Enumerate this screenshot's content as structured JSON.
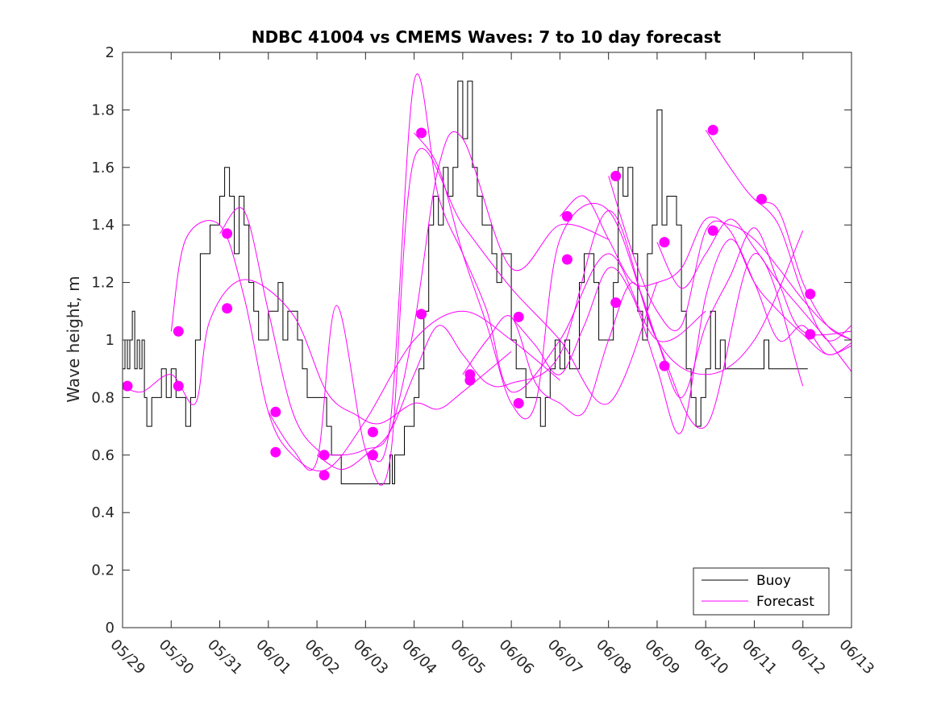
{
  "chart_data": {
    "type": "line",
    "title": "NDBC 41004 vs CMEMS Waves: 7 to 10 day forecast",
    "ylabel": "Wave height, m",
    "xlabel": "",
    "xlim": [
      0,
      15
    ],
    "ylim": [
      0,
      2
    ],
    "y_ticks": [
      0,
      0.2,
      0.4,
      0.6,
      0.8,
      1,
      1.2,
      1.4,
      1.6,
      1.8,
      2
    ],
    "y_tick_labels": [
      "0",
      "0.2",
      "0.4",
      "0.6",
      "0.8",
      "1",
      "1.2",
      "1.4",
      "1.6",
      "1.8",
      "2"
    ],
    "x_tick_labels": [
      "05/29",
      "05/30",
      "05/31",
      "06/01",
      "06/02",
      "06/03",
      "06/04",
      "06/05",
      "06/06",
      "06/07",
      "06/08",
      "06/09",
      "06/10",
      "06/11",
      "06/12",
      "06/13"
    ],
    "grid": false,
    "legend_position": "bottom-right",
    "legend": [
      "Buoy",
      "Forecast"
    ],
    "colors": {
      "buoy": "#000000",
      "forecast": "#ff00ff"
    },
    "buoy": {
      "name": "Buoy",
      "step": true,
      "x": [
        0,
        0.05,
        0.1,
        0.15,
        0.2,
        0.25,
        0.3,
        0.35,
        0.4,
        0.45,
        0.5,
        0.6,
        0.7,
        0.8,
        0.9,
        1.0,
        1.1,
        1.2,
        1.3,
        1.4,
        1.5,
        1.6,
        1.7,
        1.8,
        1.9,
        2.0,
        2.1,
        2.2,
        2.3,
        2.4,
        2.5,
        2.6,
        2.7,
        2.8,
        2.9,
        3.0,
        3.1,
        3.2,
        3.3,
        3.4,
        3.5,
        3.6,
        3.7,
        3.8,
        3.9,
        4.0,
        4.1,
        4.2,
        4.3,
        4.4,
        4.5,
        4.6,
        4.8,
        5.0,
        5.2,
        5.4,
        5.5,
        5.55,
        5.6,
        5.8,
        6.0,
        6.1,
        6.2,
        6.3,
        6.4,
        6.5,
        6.6,
        6.7,
        6.8,
        6.9,
        7.0,
        7.1,
        7.2,
        7.3,
        7.4,
        7.5,
        7.6,
        7.7,
        7.8,
        7.9,
        8.0,
        8.1,
        8.2,
        8.3,
        8.4,
        8.5,
        8.6,
        8.7,
        8.8,
        8.9,
        9.0,
        9.1,
        9.2,
        9.3,
        9.4,
        9.5,
        9.6,
        9.7,
        9.8,
        9.9,
        10.0,
        10.1,
        10.2,
        10.3,
        10.4,
        10.5,
        10.6,
        10.7,
        10.8,
        10.9,
        11.0,
        11.1,
        11.2,
        11.3,
        11.4,
        11.5,
        11.6,
        11.7,
        11.8,
        11.9,
        12.0,
        12.1,
        12.2,
        12.3,
        12.4,
        12.5,
        12.6,
        12.7,
        12.8,
        12.9,
        13.0,
        13.1,
        13.2,
        13.3,
        13.4,
        13.5,
        13.6,
        13.7,
        13.8,
        13.9,
        14.0,
        14.1
      ],
      "values": [
        0.9,
        1.0,
        0.9,
        1.0,
        1.1,
        0.9,
        1.0,
        0.9,
        1.0,
        0.8,
        0.7,
        0.8,
        0.8,
        0.9,
        0.8,
        0.9,
        0.8,
        0.8,
        0.7,
        0.8,
        1.0,
        1.3,
        1.3,
        1.4,
        1.4,
        1.5,
        1.6,
        1.5,
        1.3,
        1.5,
        1.4,
        1.2,
        1.1,
        1.0,
        1.0,
        1.1,
        1.1,
        1.2,
        1.0,
        1.1,
        1.1,
        1.0,
        0.9,
        0.8,
        0.8,
        0.8,
        0.8,
        0.7,
        0.6,
        0.6,
        0.5,
        0.5,
        0.5,
        0.5,
        0.5,
        0.5,
        0.6,
        0.5,
        0.6,
        0.7,
        0.8,
        0.9,
        1.1,
        1.4,
        1.5,
        1.4,
        1.6,
        1.5,
        1.6,
        1.9,
        1.7,
        1.9,
        1.6,
        1.5,
        1.4,
        1.4,
        1.3,
        1.2,
        1.3,
        1.3,
        1.0,
        0.9,
        0.9,
        0.8,
        0.8,
        0.8,
        0.7,
        0.8,
        0.9,
        1.0,
        0.9,
        1.0,
        0.9,
        0.9,
        1.2,
        1.3,
        1.3,
        1.2,
        1.0,
        1.0,
        1.0,
        1.2,
        1.6,
        1.5,
        1.6,
        1.3,
        1.1,
        1.0,
        1.3,
        1.4,
        1.8,
        1.4,
        1.5,
        1.5,
        1.4,
        1.1,
        0.9,
        0.8,
        0.7,
        0.8,
        0.9,
        1.1,
        0.9,
        1.0,
        0.9,
        0.9,
        0.9,
        0.9,
        0.9,
        0.9,
        0.9,
        0.9,
        1.0,
        0.9,
        0.9,
        0.9,
        0.9,
        0.9,
        0.9,
        0.9,
        0.9,
        0.9
      ]
    },
    "forecasts": [
      {
        "name": "Forecast",
        "x": [
          0,
          0.4,
          1.0,
          1.5,
          1.8,
          2.5,
          3.5,
          4.2,
          4.8,
          5.3,
          6.0,
          6.5,
          7.0,
          8.0
        ],
        "values": [
          0.84,
          0.82,
          0.88,
          0.78,
          1.07,
          1.21,
          1.09,
          0.82,
          0.74,
          0.71,
          0.78,
          0.76,
          0.82,
          0.96
        ]
      },
      {
        "name": "Forecast",
        "x": [
          1,
          1.3,
          2,
          2.5,
          3,
          3.5,
          4.2,
          5,
          6,
          7,
          8,
          9
        ],
        "values": [
          1.03,
          1.35,
          1.4,
          1.15,
          0.75,
          0.6,
          0.55,
          0.72,
          1.0,
          1.1,
          1.0,
          0.86
        ]
      },
      {
        "name": "Forecast",
        "x": [
          2,
          2.5,
          3,
          3.5,
          4,
          4.5,
          5,
          5.5,
          6,
          6.5,
          7,
          8,
          9,
          10
        ],
        "values": [
          1.37,
          1.45,
          1.1,
          0.75,
          0.62,
          0.6,
          0.62,
          0.68,
          1.05,
          1.6,
          1.7,
          1.25,
          1.4,
          1.35
        ]
      },
      {
        "name": "Forecast",
        "x": [
          3,
          3.5,
          4,
          4.4,
          5,
          5.5,
          6,
          7,
          8,
          9,
          10,
          11
        ],
        "values": [
          0.75,
          0.62,
          0.58,
          1.12,
          0.62,
          0.58,
          1.63,
          1.4,
          1.18,
          1.0,
          0.78,
          1.2
        ]
      },
      {
        "name": "Forecast",
        "x": [
          4,
          4.5,
          5,
          5.5,
          6,
          6.5,
          7,
          7.5,
          8,
          9,
          10,
          11,
          12
        ],
        "values": [
          0.6,
          0.55,
          0.6,
          0.7,
          1.9,
          1.5,
          1.3,
          1.1,
          0.82,
          1.0,
          1.3,
          1.0,
          1.1
        ]
      },
      {
        "name": "Forecast",
        "x": [
          5,
          5.5,
          6,
          6.5,
          7,
          7.5,
          8,
          9,
          10,
          11,
          12,
          13,
          14
        ],
        "values": [
          0.6,
          0.68,
          0.88,
          1.05,
          0.95,
          0.85,
          0.85,
          0.95,
          1.45,
          1.0,
          0.88,
          1.0,
          1.38
        ]
      },
      {
        "name": "Forecast",
        "x": [
          6,
          6.5,
          7,
          7.5,
          8,
          8.5,
          9,
          10,
          11,
          12,
          13,
          14
        ],
        "values": [
          1.72,
          1.6,
          1.3,
          1.05,
          0.78,
          0.78,
          1.35,
          1.45,
          1.0,
          0.7,
          1.3,
          0.84
        ]
      },
      {
        "name": "Forecast",
        "x": [
          7,
          7.5,
          8,
          8.5,
          9,
          9.5,
          10,
          10.5,
          11,
          11.5,
          12,
          12.5,
          13,
          13.5,
          14,
          15
        ],
        "values": [
          0.88,
          1.0,
          1.08,
          0.85,
          0.78,
          0.75,
          1.0,
          1.2,
          1.0,
          0.8,
          1.05,
          1.22,
          1.39,
          1.2,
          1.03,
          1.03
        ]
      },
      {
        "name": "Forecast",
        "x": [
          8,
          8.5,
          9,
          9.5,
          10,
          10.5,
          11,
          11.5,
          12,
          12.5,
          13,
          13.5,
          14,
          14.5,
          15
        ],
        "values": [
          1.08,
          0.98,
          0.88,
          1.05,
          1.25,
          1.15,
          0.9,
          0.68,
          1.15,
          1.35,
          1.2,
          1.0,
          1.05,
          0.95,
          0.99
        ]
      },
      {
        "name": "Forecast",
        "x": [
          9,
          9.5,
          10,
          10.5,
          11,
          11.5,
          12,
          12.5,
          13,
          13.5,
          14,
          14.5,
          15
        ],
        "values": [
          1.43,
          1.5,
          1.35,
          1.2,
          1.2,
          1.25,
          1.42,
          1.38,
          1.2,
          1.1,
          1.02,
          0.95,
          0.98
        ]
      },
      {
        "name": "Forecast",
        "x": [
          10,
          10.5,
          11,
          11.5,
          12,
          12.5,
          13,
          13.5,
          14,
          14.5,
          15
        ],
        "values": [
          1.57,
          1.3,
          1.1,
          1.05,
          1.38,
          1.4,
          1.35,
          1.25,
          1.14,
          1.05,
          1.0
        ]
      },
      {
        "name": "Forecast",
        "x": [
          11,
          11.5,
          12,
          12.5,
          13,
          13.5,
          14,
          14.5,
          15
        ],
        "values": [
          1.34,
          1.18,
          1.3,
          1.42,
          1.32,
          1.2,
          1.1,
          1.0,
          0.89
        ]
      },
      {
        "name": "Forecast",
        "x": [
          12,
          12.5,
          13,
          13.5,
          14,
          14.5,
          15
        ],
        "values": [
          1.73,
          1.6,
          1.49,
          1.45,
          1.2,
          1.05,
          1.0
        ]
      },
      {
        "name": "Forecast",
        "x": [
          13,
          13.5,
          14,
          14.5,
          15
        ],
        "values": [
          1.49,
          1.4,
          1.16,
          1.0,
          1.05
        ]
      }
    ],
    "markers": {
      "x": [
        0.1,
        1.15,
        1.15,
        2.15,
        2.15,
        3.15,
        3.15,
        4.15,
        4.15,
        5.15,
        5.15,
        6.15,
        6.15,
        7.15,
        7.15,
        8.15,
        8.15,
        9.15,
        9.15,
        10.15,
        10.15,
        11.15,
        11.15,
        12.15,
        12.15,
        13.15,
        14.15,
        14.15
      ],
      "values": [
        0.84,
        1.03,
        0.84,
        1.37,
        1.11,
        0.75,
        0.61,
        0.6,
        0.53,
        0.68,
        0.6,
        1.72,
        1.09,
        0.88,
        0.86,
        1.08,
        0.78,
        1.43,
        1.28,
        1.57,
        1.13,
        1.34,
        0.91,
        1.73,
        1.38,
        1.49,
        1.16,
        1.02
      ]
    }
  }
}
